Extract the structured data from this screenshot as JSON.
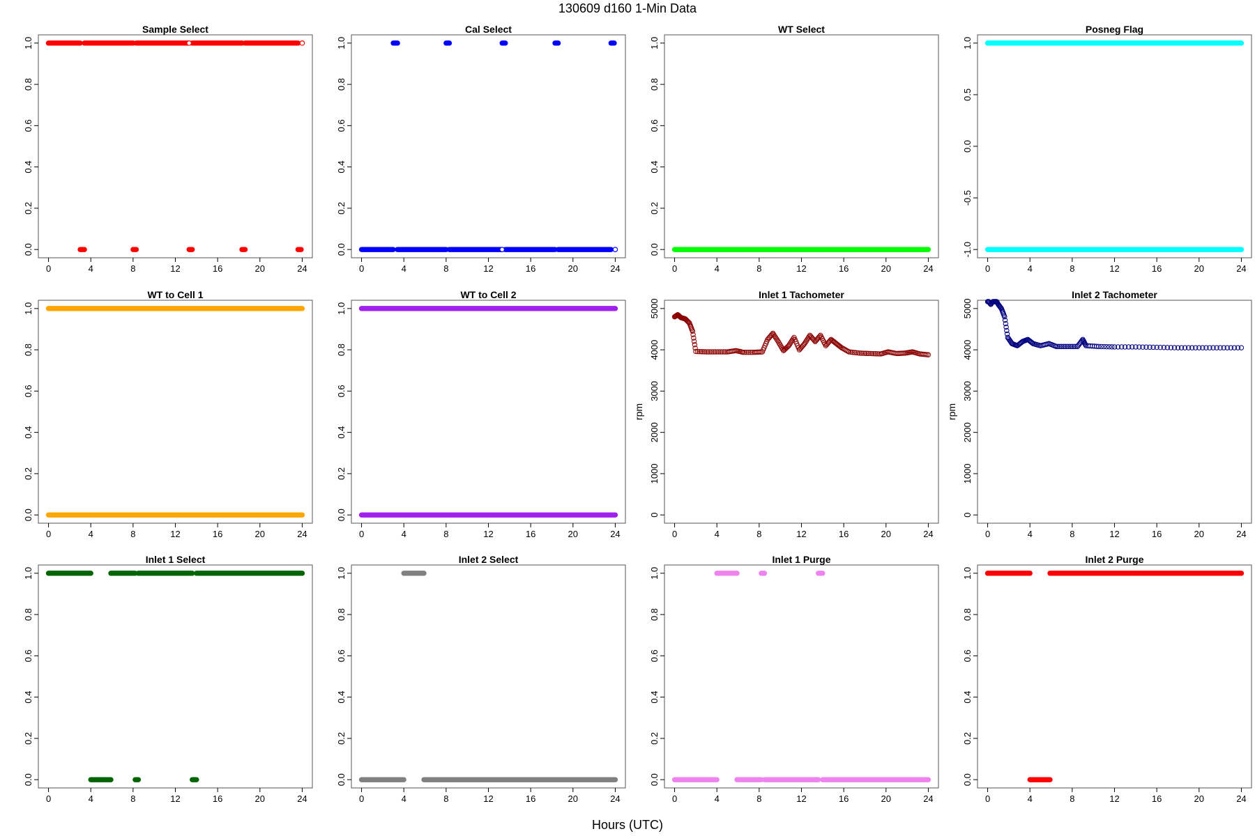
{
  "figure": {
    "title": "130609   d160   1-Min Data",
    "xlabel": "Hours (UTC)"
  },
  "chart_data": [
    {
      "type": "scatter",
      "title": "Sample Select",
      "ylabel": "",
      "color": "#ff0000",
      "xlim": [
        0,
        24
      ],
      "ylim": [
        0,
        1
      ],
      "xticks": [
        0,
        4,
        8,
        12,
        16,
        20,
        24
      ],
      "yticks": [
        0,
        0.2,
        0.4,
        0.6,
        0.8,
        1
      ],
      "ytick_labels": [
        "0.0",
        "0.2",
        "0.4",
        "0.6",
        "0.8",
        "1.0"
      ],
      "segments": [
        {
          "y": 1,
          "x": [
            [
              0,
              3
            ],
            [
              3.4,
              8
            ],
            [
              8.3,
              13.3
            ],
            [
              13.6,
              18.3
            ],
            [
              18.6,
              23.6
            ]
          ]
        },
        {
          "y": 0,
          "x": [
            [
              3,
              3.4
            ],
            [
              8,
              8.3
            ],
            [
              13.3,
              13.6
            ],
            [
              18.3,
              18.6
            ],
            [
              23.6,
              23.9
            ]
          ]
        }
      ],
      "points": [
        {
          "x": 13.3,
          "y": 1,
          "hollow": true
        },
        {
          "x": 24,
          "y": 1,
          "hollow": true
        }
      ]
    },
    {
      "type": "scatter",
      "title": "Cal Select",
      "ylabel": "",
      "color": "#0000ff",
      "xlim": [
        0,
        24
      ],
      "ylim": [
        0,
        1
      ],
      "xticks": [
        0,
        4,
        8,
        12,
        16,
        20,
        24
      ],
      "yticks": [
        0,
        0.2,
        0.4,
        0.6,
        0.8,
        1
      ],
      "ytick_labels": [
        "0.0",
        "0.2",
        "0.4",
        "0.6",
        "0.8",
        "1.0"
      ],
      "segments": [
        {
          "y": 1,
          "x": [
            [
              3,
              3.4
            ],
            [
              8,
              8.3
            ],
            [
              13.3,
              13.6
            ],
            [
              18.3,
              18.6
            ],
            [
              23.6,
              23.9
            ]
          ]
        },
        {
          "y": 0,
          "x": [
            [
              0,
              3
            ],
            [
              3.4,
              8
            ],
            [
              8.3,
              13.3
            ],
            [
              13.6,
              18.3
            ],
            [
              18.6,
              23.6
            ]
          ]
        }
      ],
      "points": [
        {
          "x": 13.3,
          "y": 0,
          "hollow": true
        },
        {
          "x": 24,
          "y": 0,
          "hollow": true
        }
      ]
    },
    {
      "type": "scatter",
      "title": "WT Select",
      "ylabel": "",
      "color": "#00ff00",
      "xlim": [
        0,
        24
      ],
      "ylim": [
        0,
        1
      ],
      "xticks": [
        0,
        4,
        8,
        12,
        16,
        20,
        24
      ],
      "yticks": [
        0,
        0.2,
        0.4,
        0.6,
        0.8,
        1
      ],
      "ytick_labels": [
        "0.0",
        "0.2",
        "0.4",
        "0.6",
        "0.8",
        "1.0"
      ],
      "segments": [
        {
          "y": 0,
          "x": [
            [
              0,
              24
            ]
          ]
        }
      ],
      "points": []
    },
    {
      "type": "scatter",
      "title": "Posneg Flag",
      "ylabel": "",
      "color": "#00ffff",
      "xlim": [
        0,
        24
      ],
      "ylim": [
        -1,
        1
      ],
      "xticks": [
        0,
        4,
        8,
        12,
        16,
        20,
        24
      ],
      "yticks": [
        -1,
        -0.5,
        0,
        0.5,
        1
      ],
      "ytick_labels": [
        "-1.0",
        "-0.5",
        "0.0",
        "0.5",
        "1.0"
      ],
      "segments": [
        {
          "y": 1,
          "x": [
            [
              0,
              24
            ]
          ]
        },
        {
          "y": -1,
          "x": [
            [
              0,
              24
            ]
          ]
        }
      ],
      "points": []
    },
    {
      "type": "scatter",
      "title": "WT to Cell 1",
      "ylabel": "",
      "color": "#ffa500",
      "xlim": [
        0,
        24
      ],
      "ylim": [
        0,
        1
      ],
      "xticks": [
        0,
        4,
        8,
        12,
        16,
        20,
        24
      ],
      "yticks": [
        0,
        0.2,
        0.4,
        0.6,
        0.8,
        1
      ],
      "ytick_labels": [
        "0.0",
        "0.2",
        "0.4",
        "0.6",
        "0.8",
        "1.0"
      ],
      "segments": [
        {
          "y": 1,
          "x": [
            [
              0,
              24
            ]
          ]
        },
        {
          "y": 0,
          "x": [
            [
              0,
              24
            ]
          ]
        }
      ],
      "points": []
    },
    {
      "type": "scatter",
      "title": "WT to Cell 2",
      "ylabel": "",
      "color": "#a020f0",
      "xlim": [
        0,
        24
      ],
      "ylim": [
        0,
        1
      ],
      "xticks": [
        0,
        4,
        8,
        12,
        16,
        20,
        24
      ],
      "yticks": [
        0,
        0.2,
        0.4,
        0.6,
        0.8,
        1
      ],
      "ytick_labels": [
        "0.0",
        "0.2",
        "0.4",
        "0.6",
        "0.8",
        "1.0"
      ],
      "segments": [
        {
          "y": 1,
          "x": [
            [
              0,
              24
            ]
          ]
        },
        {
          "y": 0,
          "x": [
            [
              0,
              24
            ]
          ]
        }
      ],
      "points": []
    },
    {
      "type": "scatter",
      "title": "Inlet 1 Tachometer",
      "ylabel": "rpm",
      "color": "#8b0000",
      "xlim": [
        0,
        24
      ],
      "ylim": [
        0,
        5000
      ],
      "xticks": [
        0,
        4,
        8,
        12,
        16,
        20,
        24
      ],
      "yticks": [
        0,
        1000,
        2000,
        3000,
        4000,
        5000
      ],
      "ytick_labels": [
        "0",
        "1000",
        "2000",
        "3000",
        "4000",
        "5000"
      ],
      "series": [
        {
          "x": 0.0,
          "y": 4800
        },
        {
          "x": 0.3,
          "y": 4850
        },
        {
          "x": 0.6,
          "y": 4780
        },
        {
          "x": 1.0,
          "y": 4750
        },
        {
          "x": 1.4,
          "y": 4650
        },
        {
          "x": 1.7,
          "y": 4450
        },
        {
          "x": 2.0,
          "y": 3960
        },
        {
          "x": 3.0,
          "y": 3950
        },
        {
          "x": 4.0,
          "y": 3950
        },
        {
          "x": 5.0,
          "y": 3950
        },
        {
          "x": 5.8,
          "y": 3980
        },
        {
          "x": 6.5,
          "y": 3940
        },
        {
          "x": 7.5,
          "y": 3940
        },
        {
          "x": 8.3,
          "y": 3950
        },
        {
          "x": 8.8,
          "y": 4250
        },
        {
          "x": 9.3,
          "y": 4400
        },
        {
          "x": 9.8,
          "y": 4200
        },
        {
          "x": 10.3,
          "y": 3980
        },
        {
          "x": 10.8,
          "y": 4100
        },
        {
          "x": 11.3,
          "y": 4300
        },
        {
          "x": 11.8,
          "y": 4000
        },
        {
          "x": 12.3,
          "y": 4150
        },
        {
          "x": 12.8,
          "y": 4350
        },
        {
          "x": 13.3,
          "y": 4200
        },
        {
          "x": 13.8,
          "y": 4350
        },
        {
          "x": 14.3,
          "y": 4100
        },
        {
          "x": 14.8,
          "y": 4250
        },
        {
          "x": 15.3,
          "y": 4150
        },
        {
          "x": 15.8,
          "y": 4050
        },
        {
          "x": 16.5,
          "y": 3950
        },
        {
          "x": 17.5,
          "y": 3920
        },
        {
          "x": 18.5,
          "y": 3910
        },
        {
          "x": 19.5,
          "y": 3900
        },
        {
          "x": 20.2,
          "y": 3950
        },
        {
          "x": 21.0,
          "y": 3910
        },
        {
          "x": 21.8,
          "y": 3920
        },
        {
          "x": 22.5,
          "y": 3950
        },
        {
          "x": 23.2,
          "y": 3900
        },
        {
          "x": 24.0,
          "y": 3880
        }
      ]
    },
    {
      "type": "scatter",
      "title": "Inlet 2 Tachometer",
      "ylabel": "rpm",
      "color": "#000080",
      "xlim": [
        0,
        24
      ],
      "ylim": [
        0,
        5000
      ],
      "xticks": [
        0,
        4,
        8,
        12,
        16,
        20,
        24
      ],
      "yticks": [
        0,
        1000,
        2000,
        3000,
        4000,
        5000
      ],
      "ytick_labels": [
        "0",
        "1000",
        "2000",
        "3000",
        "4000",
        "5000"
      ],
      "series": [
        {
          "x": 0.0,
          "y": 5200
        },
        {
          "x": 0.3,
          "y": 5100
        },
        {
          "x": 0.7,
          "y": 5250
        },
        {
          "x": 1.0,
          "y": 5100
        },
        {
          "x": 1.3,
          "y": 5000
        },
        {
          "x": 1.6,
          "y": 4800
        },
        {
          "x": 1.9,
          "y": 4300
        },
        {
          "x": 2.3,
          "y": 4150
        },
        {
          "x": 2.8,
          "y": 4100
        },
        {
          "x": 3.3,
          "y": 4200
        },
        {
          "x": 3.8,
          "y": 4250
        },
        {
          "x": 4.3,
          "y": 4150
        },
        {
          "x": 5.0,
          "y": 4100
        },
        {
          "x": 5.8,
          "y": 4150
        },
        {
          "x": 6.5,
          "y": 4080
        },
        {
          "x": 7.5,
          "y": 4080
        },
        {
          "x": 8.5,
          "y": 4080
        },
        {
          "x": 9.0,
          "y": 4250
        },
        {
          "x": 9.3,
          "y": 4100
        },
        {
          "x": 10.5,
          "y": 4080
        },
        {
          "x": 12.0,
          "y": 4070
        },
        {
          "x": 14.0,
          "y": 4070
        },
        {
          "x": 16.0,
          "y": 4060
        },
        {
          "x": 18.0,
          "y": 4050
        },
        {
          "x": 20.0,
          "y": 4050
        },
        {
          "x": 22.0,
          "y": 4050
        },
        {
          "x": 24.0,
          "y": 4050
        }
      ]
    },
    {
      "type": "scatter",
      "title": "Inlet 1 Select",
      "ylabel": "",
      "color": "#006400",
      "xlim": [
        0,
        24
      ],
      "ylim": [
        0,
        1
      ],
      "xticks": [
        0,
        4,
        8,
        12,
        16,
        20,
        24
      ],
      "yticks": [
        0,
        0.2,
        0.4,
        0.6,
        0.8,
        1
      ],
      "ytick_labels": [
        "0.0",
        "0.2",
        "0.4",
        "0.6",
        "0.8",
        "1.0"
      ],
      "segments": [
        {
          "y": 1,
          "x": [
            [
              0,
              4
            ],
            [
              5.9,
              8.2
            ],
            [
              8.5,
              13.6
            ],
            [
              14,
              24
            ]
          ]
        },
        {
          "y": 0,
          "x": [
            [
              4,
              5.9
            ],
            [
              8.2,
              8.5
            ],
            [
              13.6,
              14
            ]
          ]
        }
      ],
      "points": []
    },
    {
      "type": "scatter",
      "title": "Inlet 2 Select",
      "ylabel": "",
      "color": "#808080",
      "xlim": [
        0,
        24
      ],
      "ylim": [
        0,
        1
      ],
      "xticks": [
        0,
        4,
        8,
        12,
        16,
        20,
        24
      ],
      "yticks": [
        0,
        0.2,
        0.4,
        0.6,
        0.8,
        1
      ],
      "ytick_labels": [
        "0.0",
        "0.2",
        "0.4",
        "0.6",
        "0.8",
        "1.0"
      ],
      "segments": [
        {
          "y": 1,
          "x": [
            [
              4,
              5.9
            ]
          ]
        },
        {
          "y": 0,
          "x": [
            [
              0,
              4
            ],
            [
              5.9,
              24
            ]
          ]
        }
      ],
      "points": []
    },
    {
      "type": "scatter",
      "title": "Inlet 1 Purge",
      "ylabel": "",
      "color": "#ee82ee",
      "xlim": [
        0,
        24
      ],
      "ylim": [
        0,
        1
      ],
      "xticks": [
        0,
        4,
        8,
        12,
        16,
        20,
        24
      ],
      "yticks": [
        0,
        0.2,
        0.4,
        0.6,
        0.8,
        1
      ],
      "ytick_labels": [
        "0.0",
        "0.2",
        "0.4",
        "0.6",
        "0.8",
        "1.0"
      ],
      "segments": [
        {
          "y": 1,
          "x": [
            [
              4,
              5.9
            ],
            [
              8.2,
              8.5
            ],
            [
              13.6,
              14
            ]
          ]
        },
        {
          "y": 0,
          "x": [
            [
              0,
              4
            ],
            [
              5.9,
              8.2
            ],
            [
              8.5,
              13.6
            ],
            [
              14,
              24
            ]
          ]
        }
      ],
      "points": []
    },
    {
      "type": "scatter",
      "title": "Inlet 2 Purge",
      "ylabel": "",
      "color": "#ff0000",
      "xlim": [
        0,
        24
      ],
      "ylim": [
        0,
        1
      ],
      "xticks": [
        0,
        4,
        8,
        12,
        16,
        20,
        24
      ],
      "yticks": [
        0,
        0.2,
        0.4,
        0.6,
        0.8,
        1
      ],
      "ytick_labels": [
        "0.0",
        "0.2",
        "0.4",
        "0.6",
        "0.8",
        "1.0"
      ],
      "segments": [
        {
          "y": 1,
          "x": [
            [
              0,
              4
            ],
            [
              5.9,
              24
            ]
          ]
        },
        {
          "y": 0,
          "x": [
            [
              4,
              5.9
            ]
          ]
        }
      ],
      "points": []
    }
  ]
}
